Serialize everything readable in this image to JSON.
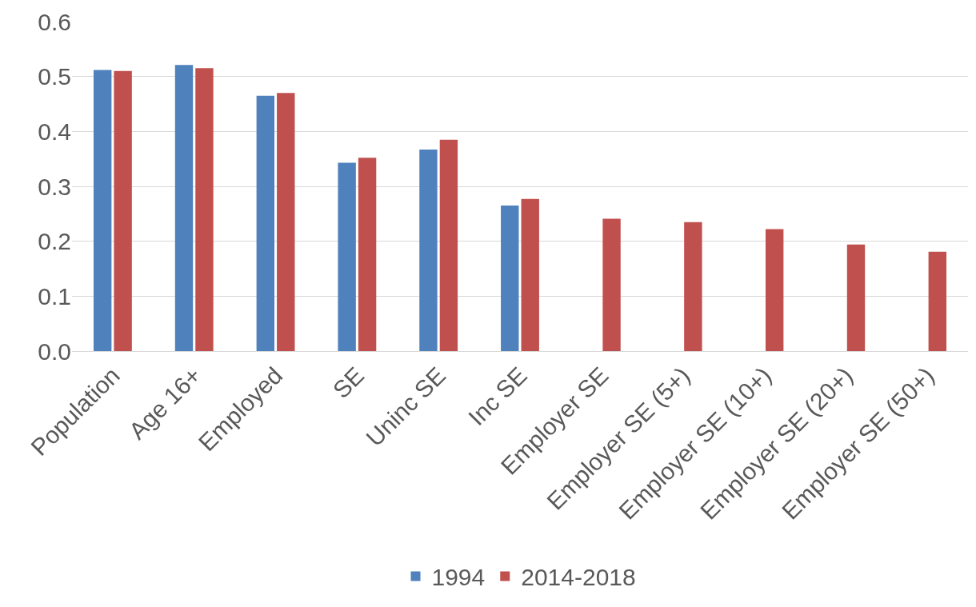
{
  "chart_data": {
    "type": "bar",
    "categories": [
      "Population",
      "Age 16+",
      "Employed",
      "SE",
      "Uninc SE",
      "Inc SE",
      "Employer SE",
      "Employer SE (5+)",
      "Employer SE (10+)",
      "Employer SE (20+)",
      "Employer SE (50+)"
    ],
    "series": [
      {
        "name": "1994",
        "color": "#4f81bd",
        "values": [
          0.512,
          0.521,
          0.465,
          0.343,
          0.367,
          0.265,
          null,
          null,
          null,
          null,
          null
        ]
      },
      {
        "name": "2014-2018",
        "color": "#c0504d",
        "values": [
          0.51,
          0.515,
          0.47,
          0.352,
          0.385,
          0.277,
          0.241,
          0.235,
          0.222,
          0.194,
          0.181
        ]
      }
    ],
    "ylim": [
      0,
      0.6
    ],
    "yticks": [
      {
        "value": 0,
        "label": "0.0"
      },
      {
        "value": 0.1,
        "label": "0.1"
      },
      {
        "value": 0.2,
        "label": "0.2"
      },
      {
        "value": 0.3,
        "label": "0.3"
      },
      {
        "value": 0.4,
        "label": "0.4"
      },
      {
        "value": 0.5,
        "label": "0.5"
      },
      {
        "value": 0.6,
        "label": "0.6"
      }
    ],
    "grid": "y",
    "legend": "bottom"
  }
}
